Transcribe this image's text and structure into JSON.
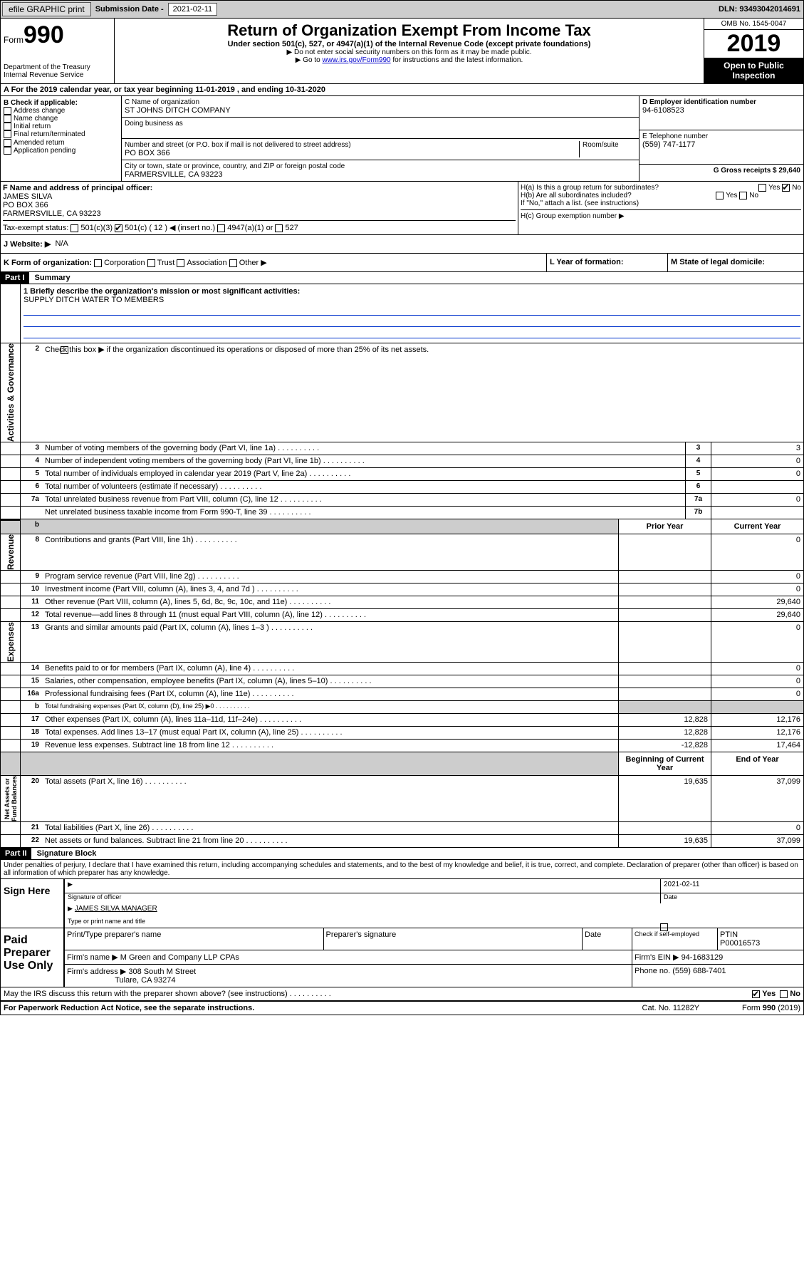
{
  "topbar": {
    "efile": "efile GRAPHIC print",
    "subLabel": "Submission Date - ",
    "subDate": "2021-02-11",
    "dln": "DLN: 93493042014691"
  },
  "header": {
    "formWord": "Form",
    "formNum": "990",
    "title": "Return of Organization Exempt From Income Tax",
    "subtitle": "Under section 501(c), 527, or 4947(a)(1) of the Internal Revenue Code (except private foundations)",
    "note1": "▶ Do not enter social security numbers on this form as it may be made public.",
    "note2a": "▶ Go to ",
    "note2link": "www.irs.gov/Form990",
    "note2b": " for instructions and the latest information.",
    "dept": "Department of the Treasury\nInternal Revenue Service",
    "omb": "OMB No. 1545-0047",
    "year": "2019",
    "openpub": "Open to Public Inspection"
  },
  "taxYear": {
    "lineA": "A For the 2019 calendar year, or tax year beginning 11-01-2019    , and ending 10-31-2020"
  },
  "boxB": {
    "label": "B Check if applicable:",
    "items": [
      "Address change",
      "Name change",
      "Initial return",
      "Final return/terminated",
      "Amended return",
      "Application pending"
    ]
  },
  "boxC": {
    "nameLabel": "C Name of organization",
    "name": "ST JOHNS DITCH COMPANY",
    "dbaLabel": "Doing business as",
    "dba": "",
    "addrLabel": "Number and street (or P.O. box if mail is not delivered to street address)",
    "roomLabel": "Room/suite",
    "addr": "PO BOX 366",
    "cityLabel": "City or town, state or province, country, and ZIP or foreign postal code",
    "city": "FARMERSVILLE, CA  93223"
  },
  "boxD": {
    "label": "D Employer identification number",
    "ein": "94-6108523"
  },
  "boxE": {
    "label": "E Telephone number",
    "phone": "(559) 747-1177"
  },
  "boxG": {
    "label": "G Gross receipts $ ",
    "val": "29,640"
  },
  "boxF": {
    "label": "F Name and address of principal officer:",
    "name": "JAMES SILVA",
    "addr1": "PO BOX 366",
    "addr2": "FARMERSVILLE, CA  93223"
  },
  "boxH": {
    "a": "H(a)  Is this a group return for subordinates?",
    "yes": "Yes",
    "no": "No",
    "b": "H(b)  Are all subordinates included?",
    "bnote": "If \"No,\" attach a list. (see instructions)",
    "c": "H(c)  Group exemption number ▶"
  },
  "taxStatus": {
    "label": "Tax-exempt status:",
    "c3": "501(c)(3)",
    "c": "501(c) ( 12 ) ◀ (insert no.)",
    "a1": "4947(a)(1) or",
    "s527": "527"
  },
  "boxJ": {
    "label": "J   Website: ▶",
    "val": "N/A"
  },
  "boxK": {
    "label": "K Form of organization:",
    "corp": "Corporation",
    "trust": "Trust",
    "assoc": "Association",
    "other": "Other ▶"
  },
  "boxL": {
    "label": "L Year of formation:",
    "val": ""
  },
  "boxM": {
    "label": "M State of legal domicile:",
    "val": ""
  },
  "part1": {
    "hdr": "Part I",
    "title": "Summary",
    "q1label": "1  Briefly describe the organization's mission or most significant activities:",
    "q1val": "SUPPLY DITCH WATER TO MEMBERS",
    "q2": "Check this box ▶        if the organization discontinued its operations or disposed of more than 25% of its net assets.",
    "sideLabels": {
      "gov": "Activities & Governance",
      "rev": "Revenue",
      "exp": "Expenses",
      "net": "Net Assets or\nFund Balances"
    },
    "colHdr": {
      "prior": "Prior Year",
      "current": "Current Year",
      "begin": "Beginning of Current Year",
      "end": "End of Year"
    },
    "lines": [
      {
        "n": "3",
        "t": "Number of voting members of the governing body (Part VI, line 1a)",
        "sm": "3",
        "v": "3",
        "section": "gov",
        "single": true
      },
      {
        "n": "4",
        "t": "Number of independent voting members of the governing body (Part VI, line 1b)",
        "sm": "4",
        "v": "0",
        "section": "gov",
        "single": true
      },
      {
        "n": "5",
        "t": "Total number of individuals employed in calendar year 2019 (Part V, line 2a)",
        "sm": "5",
        "v": "0",
        "section": "gov",
        "single": true
      },
      {
        "n": "6",
        "t": "Total number of volunteers (estimate if necessary)",
        "sm": "6",
        "v": "",
        "section": "gov",
        "single": true
      },
      {
        "n": "7a",
        "t": "Total unrelated business revenue from Part VIII, column (C), line 12",
        "sm": "7a",
        "v": "0",
        "section": "gov",
        "single": true
      },
      {
        "n": "",
        "t": "Net unrelated business taxable income from Form 990-T, line 39",
        "sm": "7b",
        "v": "",
        "section": "gov",
        "single": true
      },
      {
        "n": "8",
        "t": "Contributions and grants (Part VIII, line 1h)",
        "p": "",
        "c": "0",
        "section": "rev"
      },
      {
        "n": "9",
        "t": "Program service revenue (Part VIII, line 2g)",
        "p": "",
        "c": "0",
        "section": "rev"
      },
      {
        "n": "10",
        "t": "Investment income (Part VIII, column (A), lines 3, 4, and 7d )",
        "p": "",
        "c": "0",
        "section": "rev"
      },
      {
        "n": "11",
        "t": "Other revenue (Part VIII, column (A), lines 5, 6d, 8c, 9c, 10c, and 11e)",
        "p": "",
        "c": "29,640",
        "section": "rev"
      },
      {
        "n": "12",
        "t": "Total revenue—add lines 8 through 11 (must equal Part VIII, column (A), line 12)",
        "p": "",
        "c": "29,640",
        "section": "rev"
      },
      {
        "n": "13",
        "t": "Grants and similar amounts paid (Part IX, column (A), lines 1–3 )",
        "p": "",
        "c": "0",
        "section": "exp"
      },
      {
        "n": "14",
        "t": "Benefits paid to or for members (Part IX, column (A), line 4)",
        "p": "",
        "c": "0",
        "section": "exp"
      },
      {
        "n": "15",
        "t": "Salaries, other compensation, employee benefits (Part IX, column (A), lines 5–10)",
        "p": "",
        "c": "0",
        "section": "exp"
      },
      {
        "n": "16a",
        "t": "Professional fundraising fees (Part IX, column (A), line 11e)",
        "p": "",
        "c": "0",
        "section": "exp"
      },
      {
        "n": "b",
        "t": "Total fundraising expenses (Part IX, column (D), line 25) ▶0",
        "p": "GRAY",
        "c": "GRAY",
        "section": "exp",
        "small": true
      },
      {
        "n": "17",
        "t": "Other expenses (Part IX, column (A), lines 11a–11d, 11f–24e)",
        "p": "12,828",
        "c": "12,176",
        "section": "exp"
      },
      {
        "n": "18",
        "t": "Total expenses. Add lines 13–17 (must equal Part IX, column (A), line 25)",
        "p": "12,828",
        "c": "12,176",
        "section": "exp"
      },
      {
        "n": "19",
        "t": "Revenue less expenses. Subtract line 18 from line 12",
        "p": "-12,828",
        "c": "17,464",
        "section": "exp"
      },
      {
        "n": "20",
        "t": "Total assets (Part X, line 16)",
        "p": "19,635",
        "c": "37,099",
        "section": "net"
      },
      {
        "n": "21",
        "t": "Total liabilities (Part X, line 26)",
        "p": "",
        "c": "0",
        "section": "net"
      },
      {
        "n": "22",
        "t": "Net assets or fund balances. Subtract line 21 from line 20",
        "p": "19,635",
        "c": "37,099",
        "section": "net"
      }
    ]
  },
  "part2": {
    "hdr": "Part II",
    "title": "Signature Block"
  },
  "perjury": "Under penalties of perjury, I declare that I have examined this return, including accompanying schedules and statements, and to the best of my knowledge and belief, it is true, correct, and complete. Declaration of preparer (other than officer) is based on all information of which preparer has any knowledge.",
  "sign": {
    "here": "Sign Here",
    "sigOfficer": "Signature of officer",
    "date": "2021-02-11",
    "dateLabel": "Date",
    "typed": "JAMES SILVA  MANAGER",
    "typedLabel": "Type or print name and title"
  },
  "paid": {
    "label": "Paid Preparer Use Only",
    "printName": "Print/Type preparer's name",
    "prepSig": "Preparer's signature",
    "dateLabel": "Date",
    "checkSelf": "Check        if self-employed",
    "ptinLabel": "PTIN",
    "ptin": "P00016573",
    "firmNameLabel": "Firm's name    ▶",
    "firmName": "M Green and Company LLP CPAs",
    "firmEinLabel": "Firm's EIN ▶",
    "firmEin": "94-1683129",
    "firmAddrLabel": "Firm's address ▶",
    "firmAddr1": "308 South M Street",
    "firmAddr2": "Tulare, CA  93274",
    "phoneLabel": "Phone no.",
    "phone": "(559) 688-7401"
  },
  "discuss": {
    "q": "May the IRS discuss this return with the preparer shown above? (see instructions)",
    "yes": "Yes",
    "no": "No"
  },
  "footer": {
    "pra": "For Paperwork Reduction Act Notice, see the separate instructions.",
    "cat": "Cat. No. 11282Y",
    "form": "Form 990 (2019)"
  }
}
